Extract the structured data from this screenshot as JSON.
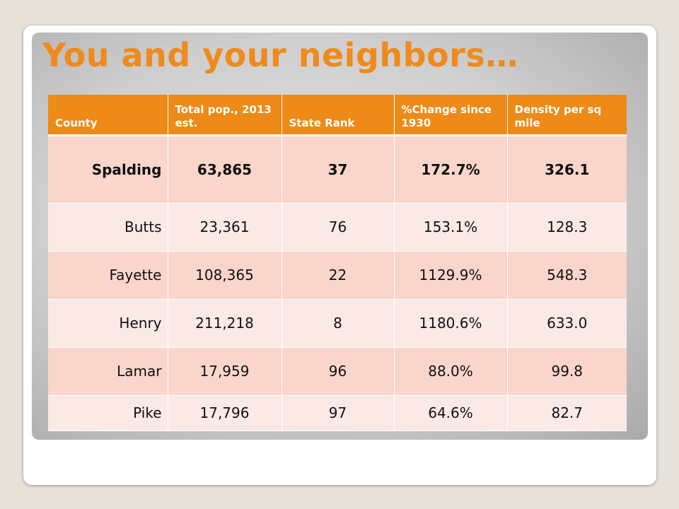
{
  "title": "You and your neighbors…",
  "table": {
    "headers": [
      "County",
      "Total pop., 2013 est.",
      "State Rank",
      "%Change since 1930",
      "Density per sq mile"
    ],
    "rows": [
      [
        "Spalding",
        "63,865",
        "37",
        "172.7%",
        "326.1"
      ],
      [
        "Butts",
        "23,361",
        "76",
        "153.1%",
        "128.3"
      ],
      [
        "Fayette",
        "108,365",
        "22",
        "1129.9%",
        "548.3"
      ],
      [
        "Henry",
        "211,218",
        "8",
        "1180.6%",
        "633.0"
      ],
      [
        "Lamar",
        "17,959",
        "96",
        "88.0%",
        "99.8"
      ],
      [
        "Pike",
        "17,796",
        "97",
        "64.6%",
        "82.7"
      ]
    ]
  },
  "colors": {
    "accent": "#ee8a17",
    "row_dark": "#f9d5cb",
    "row_light": "#fbe9e6"
  }
}
